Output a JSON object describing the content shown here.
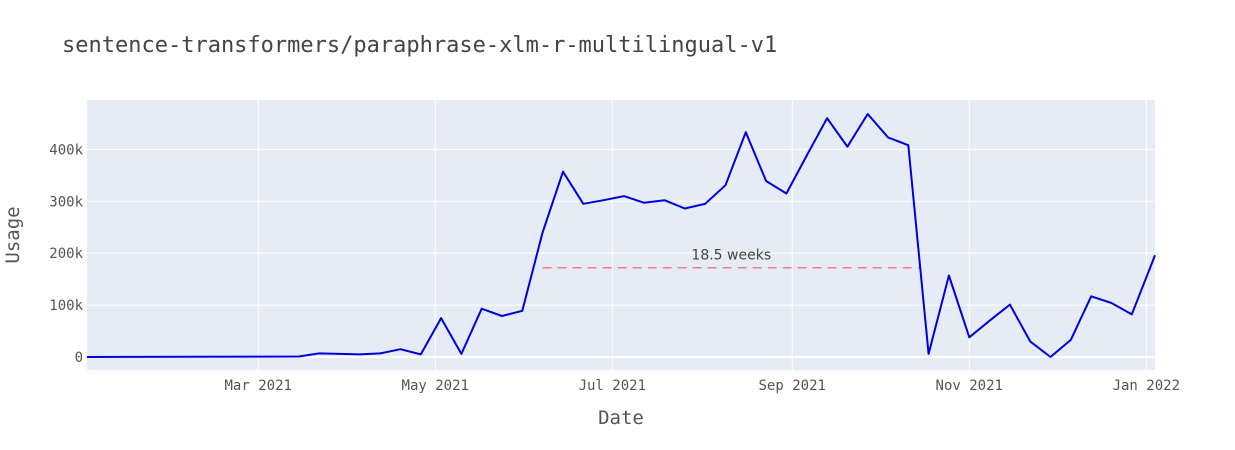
{
  "chart_data": {
    "type": "line",
    "title": "sentence-transformers/paraphrase-xlm-r-multilingual-v1",
    "xlabel": "Date",
    "ylabel": "Usage",
    "x_ticks": [
      "Mar 2021",
      "May 2021",
      "Jul 2021",
      "Sep 2021",
      "Nov 2021",
      "Jan 2022"
    ],
    "y_ticks": [
      "0",
      "100k",
      "200k",
      "300k",
      "400k"
    ],
    "xlim": [
      "2021-01-01",
      "2022-01-04"
    ],
    "ylim": [
      -25000,
      495000
    ],
    "grid": true,
    "legend": "none",
    "series": [
      {
        "color": "#0000dd",
        "points": [
          [
            "2021-01-01",
            0
          ],
          [
            "2021-03-15",
            1000
          ],
          [
            "2021-03-22",
            7000
          ],
          [
            "2021-04-05",
            5000
          ],
          [
            "2021-04-12",
            7000
          ],
          [
            "2021-04-19",
            15000
          ],
          [
            "2021-04-26",
            5000
          ],
          [
            "2021-05-03",
            75000
          ],
          [
            "2021-05-10",
            6000
          ],
          [
            "2021-05-17",
            93000
          ],
          [
            "2021-05-24",
            79000
          ],
          [
            "2021-05-31",
            89000
          ],
          [
            "2021-06-07",
            240000
          ],
          [
            "2021-06-14",
            357000
          ],
          [
            "2021-06-21",
            295000
          ],
          [
            "2021-06-28",
            302000
          ],
          [
            "2021-07-05",
            310000
          ],
          [
            "2021-07-12",
            297000
          ],
          [
            "2021-07-19",
            302000
          ],
          [
            "2021-07-26",
            286000
          ],
          [
            "2021-08-02",
            295000
          ],
          [
            "2021-08-09",
            331000
          ],
          [
            "2021-08-16",
            433000
          ],
          [
            "2021-08-23",
            339000
          ],
          [
            "2021-08-30",
            315000
          ],
          [
            "2021-09-06",
            388000
          ],
          [
            "2021-09-13",
            460000
          ],
          [
            "2021-09-20",
            405000
          ],
          [
            "2021-09-27",
            468000
          ],
          [
            "2021-10-04",
            423000
          ],
          [
            "2021-10-11",
            408000
          ],
          [
            "2021-10-18",
            6000
          ],
          [
            "2021-10-25",
            157000
          ],
          [
            "2021-11-01",
            38000
          ],
          [
            "2021-11-08",
            70000
          ],
          [
            "2021-11-15",
            101000
          ],
          [
            "2021-11-22",
            30000
          ],
          [
            "2021-11-29",
            0
          ],
          [
            "2021-12-06",
            33000
          ],
          [
            "2021-12-13",
            117000
          ],
          [
            "2021-12-20",
            104000
          ],
          [
            "2021-12-27",
            82000
          ],
          [
            "2022-01-04",
            196000
          ]
        ]
      }
    ],
    "annotation": {
      "text": "18.5 weeks",
      "x_start": "2021-06-07",
      "x_end": "2021-10-15",
      "y": 172000,
      "color": "#f08080",
      "style": "dashed"
    }
  }
}
